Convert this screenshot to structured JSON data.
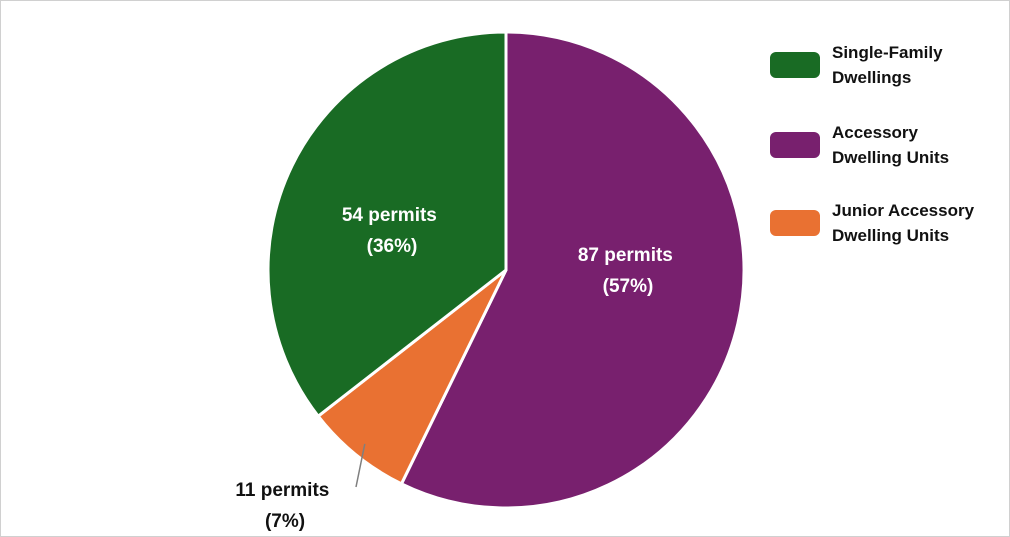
{
  "chart_data": {
    "type": "pie",
    "slices": [
      {
        "name": "Accessory Dwelling Units",
        "value": 87,
        "percent": "57%",
        "label_line1": "87 permits",
        "label_line2": "(57%)",
        "color": "#78206e"
      },
      {
        "name": "Junior Accessory Dwelling Units",
        "value": 11,
        "percent": "7%",
        "label_line1": "11 permits",
        "label_line2": "(7%)",
        "color": "#e97132"
      },
      {
        "name": "Single-Family Dwellings",
        "value": 54,
        "percent": "36%",
        "label_line1": "54 permits",
        "label_line2": "(36%)",
        "color": "#196b24"
      }
    ],
    "legend": {
      "position": "right",
      "items": [
        {
          "line1": "Single-Family",
          "line2": "Dwellings",
          "color": "#196b24"
        },
        {
          "line1": "Accessory",
          "line2": "Dwelling Units",
          "color": "#78206e"
        },
        {
          "line1": "Junior Accessory",
          "line2": "Dwelling Units",
          "color": "#e97132"
        }
      ]
    }
  }
}
